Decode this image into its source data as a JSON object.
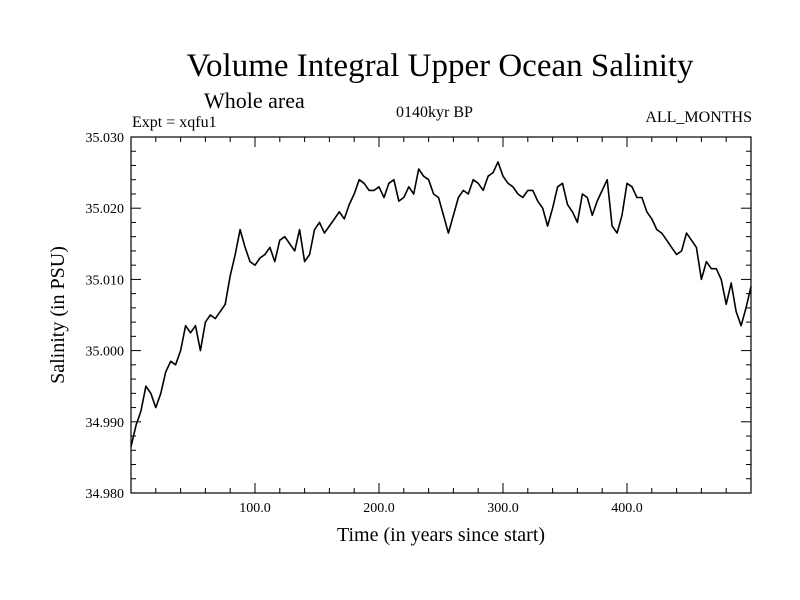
{
  "chart_data": {
    "type": "line",
    "title": "Volume Integral Upper Ocean Salinity",
    "subtitle": "Whole area",
    "experiment_label": "Expt = xqfu1",
    "period_label": "0140kyr BP",
    "months_label": "ALL_MONTHS",
    "xlabel": "Time (in years since start)",
    "ylabel": "Salinity (in PSU)",
    "xlim": [
      0,
      500
    ],
    "ylim": [
      34.98,
      35.03
    ],
    "x_tick_values": [
      100,
      200,
      300,
      400
    ],
    "x_tick_labels": [
      "100.0",
      "200.0",
      "300.0",
      "400.0"
    ],
    "y_tick_values": [
      34.98,
      34.99,
      35.0,
      35.01,
      35.02,
      35.03
    ],
    "y_tick_labels": [
      "34.980",
      "34.990",
      "35.000",
      "35.010",
      "35.020",
      "35.030"
    ],
    "series": [
      {
        "name": "salinity",
        "color": "#000000",
        "x": [
          0,
          4,
          8,
          12,
          16,
          20,
          24,
          28,
          32,
          36,
          40,
          44,
          48,
          52,
          56,
          60,
          64,
          68,
          72,
          76,
          80,
          84,
          88,
          92,
          96,
          100,
          104,
          108,
          112,
          116,
          120,
          124,
          128,
          132,
          136,
          140,
          144,
          148,
          152,
          156,
          160,
          164,
          168,
          172,
          176,
          180,
          184,
          188,
          192,
          196,
          200,
          204,
          208,
          212,
          216,
          220,
          224,
          228,
          232,
          236,
          240,
          244,
          248,
          252,
          256,
          260,
          264,
          268,
          272,
          276,
          280,
          284,
          288,
          292,
          296,
          300,
          304,
          308,
          312,
          316,
          320,
          324,
          328,
          332,
          336,
          340,
          344,
          348,
          352,
          356,
          360,
          364,
          368,
          372,
          376,
          380,
          384,
          388,
          392,
          396,
          400,
          404,
          408,
          412,
          416,
          420,
          424,
          428,
          432,
          436,
          440,
          444,
          448,
          452,
          456,
          460,
          464,
          468,
          472,
          476,
          480,
          484,
          488,
          492,
          496,
          500
        ],
        "y": [
          34.9865,
          34.9895,
          34.9915,
          34.995,
          34.994,
          34.992,
          34.994,
          34.997,
          34.9985,
          34.998,
          35.0,
          35.0035,
          35.0025,
          35.0035,
          35.0,
          35.004,
          35.005,
          35.0045,
          35.0055,
          35.0065,
          35.0105,
          35.0135,
          35.017,
          35.0145,
          35.0125,
          35.012,
          35.013,
          35.0135,
          35.0145,
          35.0125,
          35.0155,
          35.016,
          35.015,
          35.014,
          35.017,
          35.0125,
          35.0135,
          35.017,
          35.018,
          35.0165,
          35.0175,
          35.0185,
          35.0195,
          35.0185,
          35.0205,
          35.022,
          35.024,
          35.0235,
          35.0225,
          35.0225,
          35.023,
          35.0215,
          35.0235,
          35.024,
          35.021,
          35.0215,
          35.023,
          35.022,
          35.0255,
          35.0245,
          35.024,
          35.022,
          35.0215,
          35.019,
          35.0165,
          35.019,
          35.0215,
          35.0225,
          35.022,
          35.024,
          35.0235,
          35.0225,
          35.0245,
          35.025,
          35.0265,
          35.0245,
          35.0235,
          35.023,
          35.022,
          35.0215,
          35.0225,
          35.0225,
          35.021,
          35.02,
          35.0175,
          35.02,
          35.023,
          35.0235,
          35.0205,
          35.0195,
          35.018,
          35.022,
          35.0215,
          35.019,
          35.021,
          35.0225,
          35.024,
          35.0175,
          35.0165,
          35.019,
          35.0235,
          35.023,
          35.0215,
          35.0215,
          35.0195,
          35.0185,
          35.017,
          35.0165,
          35.0155,
          35.0145,
          35.0135,
          35.014,
          35.0165,
          35.0155,
          35.0145,
          35.01,
          35.0125,
          35.0115,
          35.0115,
          35.01,
          35.0065,
          35.0095,
          35.0055,
          35.0035,
          35.006,
          35.009
        ]
      }
    ]
  }
}
